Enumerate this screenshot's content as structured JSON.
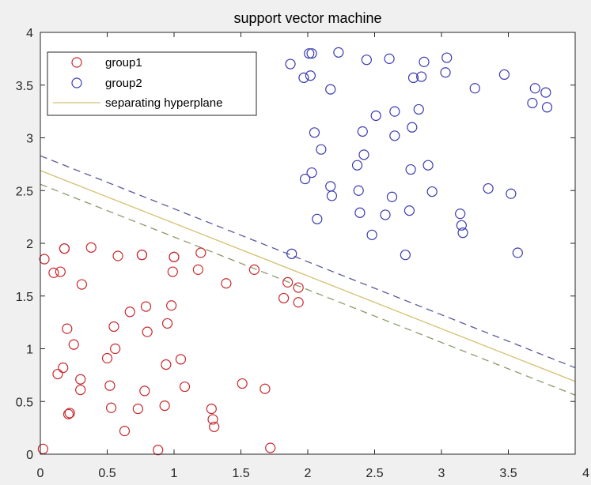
{
  "chart_data": {
    "type": "scatter",
    "title": "support vector machine",
    "xlabel": "",
    "ylabel": "",
    "xlim": [
      0,
      4
    ],
    "ylim": [
      0,
      4
    ],
    "xticks": [
      "0",
      "0.5",
      "1",
      "1.5",
      "2",
      "2.5",
      "3",
      "3.5",
      "4"
    ],
    "yticks": [
      "0",
      "0.5",
      "1",
      "1.5",
      "2",
      "2.5",
      "3",
      "3.5",
      "4"
    ],
    "grid": false,
    "legend_position": "top-left",
    "series": [
      {
        "name": "group1",
        "marker": "circle",
        "color": "#c8282c",
        "x": [
          0.02,
          0.03,
          0.1,
          0.13,
          0.15,
          0.17,
          0.18,
          0.2,
          0.22,
          0.25,
          0.3,
          0.3,
          0.31,
          0.38,
          0.5,
          0.52,
          0.53,
          0.55,
          0.56,
          0.58,
          0.63,
          0.67,
          0.73,
          0.76,
          0.78,
          0.79,
          0.8,
          0.88,
          0.93,
          0.94,
          0.95,
          0.98,
          0.99,
          1.0,
          1.05,
          1.08,
          1.18,
          1.2,
          1.28,
          1.29,
          1.3,
          1.39,
          1.51,
          1.6,
          1.68,
          1.72,
          1.82,
          1.85,
          1.93,
          1.93,
          0.21,
          0.18,
          0.76,
          1.0
        ],
        "y": [
          0.05,
          1.85,
          1.72,
          0.76,
          1.73,
          0.82,
          1.95,
          1.19,
          0.39,
          1.04,
          0.71,
          0.61,
          1.61,
          1.96,
          0.91,
          0.65,
          0.44,
          1.21,
          1.0,
          1.88,
          0.22,
          1.35,
          0.43,
          1.89,
          0.6,
          1.4,
          1.16,
          0.04,
          0.46,
          0.85,
          1.24,
          1.41,
          1.73,
          1.87,
          0.9,
          0.64,
          1.75,
          1.91,
          0.43,
          0.33,
          0.26,
          1.62,
          0.67,
          1.75,
          0.62,
          0.06,
          1.48,
          1.63,
          1.58,
          1.44,
          0.38,
          1.95,
          1.89,
          1.87
        ]
      },
      {
        "name": "group2",
        "marker": "circle",
        "color": "#3a3ab0",
        "x": [
          1.88,
          1.87,
          1.97,
          1.98,
          2.01,
          2.02,
          2.03,
          2.03,
          2.05,
          2.07,
          2.1,
          2.17,
          2.17,
          2.18,
          2.23,
          2.37,
          2.38,
          2.39,
          2.41,
          2.42,
          2.44,
          2.48,
          2.51,
          2.58,
          2.61,
          2.63,
          2.65,
          2.65,
          2.73,
          2.76,
          2.77,
          2.78,
          2.79,
          2.83,
          2.85,
          2.87,
          2.9,
          2.93,
          3.03,
          3.04,
          3.14,
          3.15,
          3.16,
          3.25,
          3.35,
          3.47,
          3.52,
          3.57,
          3.68,
          3.7,
          3.78,
          3.79
        ],
        "y": [
          1.9,
          3.7,
          3.57,
          2.61,
          3.8,
          3.59,
          2.67,
          3.8,
          3.05,
          2.23,
          2.89,
          3.46,
          2.54,
          2.45,
          3.81,
          2.74,
          2.5,
          2.29,
          3.06,
          2.84,
          3.74,
          2.08,
          3.21,
          2.27,
          3.75,
          2.44,
          3.25,
          3.02,
          1.89,
          2.31,
          2.7,
          3.1,
          3.57,
          3.27,
          3.58,
          3.72,
          2.74,
          2.49,
          3.62,
          3.76,
          2.28,
          2.17,
          2.1,
          3.47,
          2.52,
          3.6,
          2.47,
          1.91,
          3.33,
          3.47,
          3.43,
          3.29
        ]
      },
      {
        "name": "separating hyperplane",
        "type": "line",
        "color": "#d4c070",
        "x": [
          0,
          4
        ],
        "y": [
          2.69,
          0.69
        ]
      },
      {
        "type": "line",
        "dash": "dashed",
        "color": "#5a5a9a",
        "x": [
          0,
          4
        ],
        "y": [
          2.83,
          0.82
        ]
      },
      {
        "type": "line",
        "dash": "dashed",
        "color": "#8a9a6a",
        "x": [
          0,
          4
        ],
        "y": [
          2.56,
          0.56
        ]
      }
    ]
  }
}
